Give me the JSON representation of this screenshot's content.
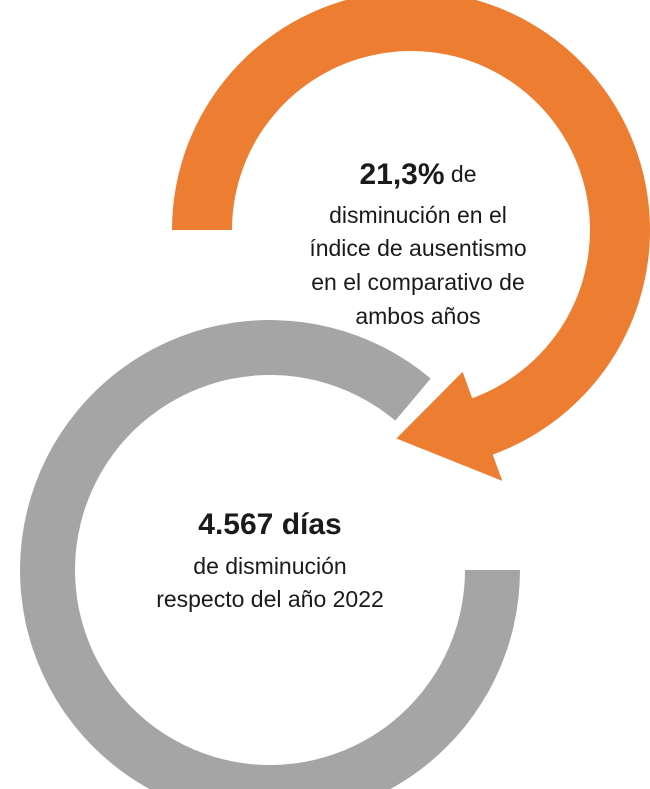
{
  "top": {
    "highlight": "21,3%",
    "rest": " de",
    "lines": [
      "disminución en el",
      "índice de ausentismo",
      "en el comparativo de",
      "ambos años"
    ]
  },
  "bottom": {
    "highlight": "4.567 días",
    "lines": [
      "de disminución",
      "respecto del año 2022"
    ]
  }
}
